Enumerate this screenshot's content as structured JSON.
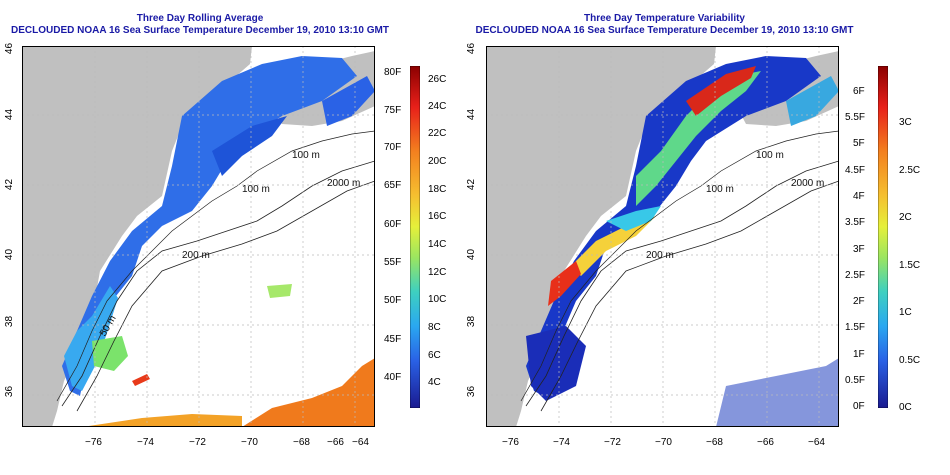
{
  "left_panel": {
    "title": "Three Day Rolling Average",
    "subtitle": "DECLOUDED NOAA 16 Sea Surface Temperature December 19, 2010 13:10 GMT",
    "colorbar_f": [
      "80F",
      "75F",
      "70F",
      "65F",
      "60F",
      "55F",
      "50F",
      "45F",
      "40F"
    ],
    "colorbar_c": [
      "26C",
      "24C",
      "22C",
      "20C",
      "18C",
      "16C",
      "14C",
      "12C",
      "10C",
      "8C",
      "6C",
      "4C"
    ]
  },
  "right_panel": {
    "title": "Three Day Temperature Variability",
    "subtitle": "DECLOUDED NOAA 16 Sea Surface Temperature December 19, 2010 13:10 GMT",
    "colorbar_f": [
      "6F",
      "5.5F",
      "5F",
      "4.5F",
      "4F",
      "3.5F",
      "3F",
      "2.5F",
      "2F",
      "1.5F",
      "1F",
      "0.5F",
      "0F"
    ],
    "colorbar_c": [
      "3C",
      "2.5C",
      "2C",
      "1.5C",
      "1C",
      "0.5C",
      "0C"
    ]
  },
  "x_ticks": [
    "−76",
    "−74",
    "−72",
    "−70",
    "−68",
    "−66",
    "−64"
  ],
  "y_ticks": [
    "36",
    "38",
    "40",
    "42",
    "44",
    "46"
  ],
  "contour_labels": [
    "100 m",
    "100 m",
    "2000 m",
    "200 m",
    "50 m"
  ],
  "colors": {
    "land": "#c0c0c0",
    "title": "#1a1aa6"
  }
}
